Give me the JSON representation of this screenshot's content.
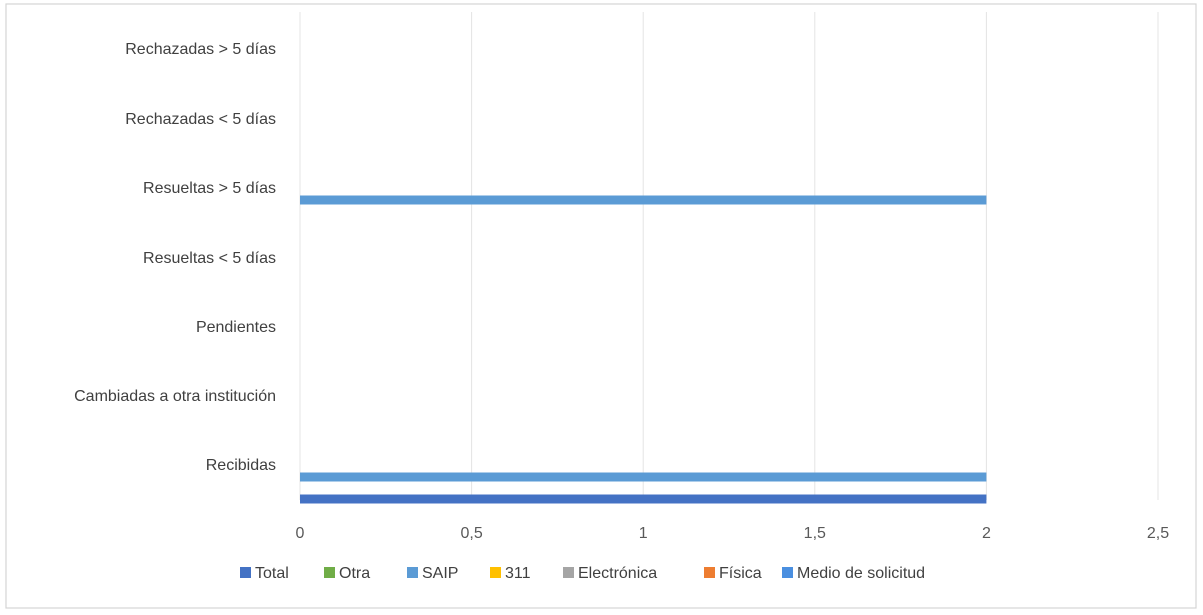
{
  "chart_data": {
    "type": "bar",
    "orientation": "horizontal",
    "title": "",
    "categories": [
      "Recibidas",
      "Cambiadas a otra institución",
      "Pendientes",
      "Resueltas < 5 días",
      "Resueltas > 5 días",
      "Rechazadas  < 5 días",
      "Rechazadas  > 5 días"
    ],
    "series": [
      {
        "name": "Total",
        "color": "#4472c4",
        "values": [
          2,
          0,
          0,
          0,
          0,
          0,
          0
        ]
      },
      {
        "name": "Otra",
        "color": "#70ad47",
        "values": [
          0,
          0,
          0,
          0,
          0,
          0,
          0
        ]
      },
      {
        "name": "SAIP",
        "color": "#5b9bd5",
        "values": [
          2,
          0,
          0,
          0,
          2,
          0,
          0
        ]
      },
      {
        "name": "311",
        "color": "#ffc000",
        "values": [
          0,
          0,
          0,
          0,
          0,
          0,
          0
        ]
      },
      {
        "name": "Electrónica",
        "color": "#a5a5a5",
        "values": [
          0,
          0,
          0,
          0,
          0,
          0,
          0
        ]
      },
      {
        "name": "Física",
        "color": "#ed7d31",
        "values": [
          0,
          0,
          0,
          0,
          0,
          0,
          0
        ]
      },
      {
        "name": "Medio de solicitud",
        "color": "#4a8fe0",
        "values": [
          0,
          0,
          0,
          0,
          0,
          0,
          0
        ]
      }
    ],
    "xlim": [
      0,
      2.5
    ],
    "xticks": [
      "0",
      "0,5",
      "1",
      "1,5",
      "2",
      "2,5"
    ],
    "grid": true,
    "legend_position": "bottom",
    "legend": [
      "Total",
      "Otra",
      "SAIP",
      "311",
      "Electrónica",
      "Física",
      "Medio de solicitud"
    ]
  }
}
